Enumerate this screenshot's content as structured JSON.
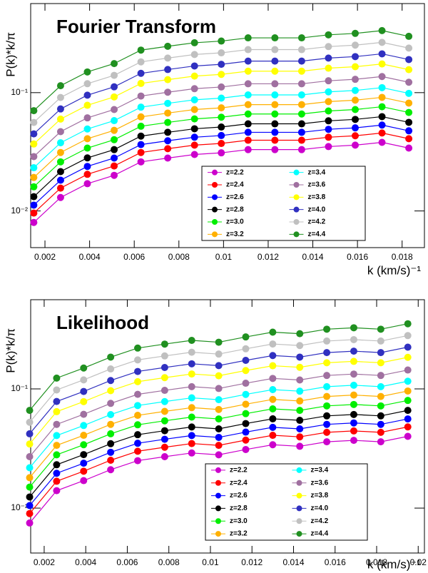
{
  "chart_data": [
    {
      "type": "scatter",
      "title": "Fourier Transform",
      "x_label": "k  (km/s)⁻¹",
      "y_label": "P(k)*k/π",
      "log_y": true,
      "x": [
        0.0015,
        0.0027,
        0.0039,
        0.0051,
        0.0063,
        0.0075,
        0.0087,
        0.0099,
        0.0111,
        0.0123,
        0.0135,
        0.0147,
        0.0159,
        0.0171,
        0.0183
      ],
      "xlim": [
        0.00136,
        0.019
      ],
      "xticks": [
        0.002,
        0.004,
        0.006,
        0.008,
        0.01,
        0.012,
        0.014,
        0.016,
        0.018
      ],
      "ylim": [
        0.0049,
        0.566
      ],
      "yticks": [
        {
          "value": 0.01,
          "label": "10⁻²"
        },
        {
          "value": 0.1,
          "label": "10⁻¹"
        }
      ],
      "series": [
        {
          "name": "z=2.2",
          "color": "#cc00cc",
          "values": [
            0.008,
            0.013,
            0.017,
            0.02,
            0.026,
            0.028,
            0.03,
            0.031,
            0.033,
            0.033,
            0.033,
            0.035,
            0.036,
            0.038,
            0.034
          ]
        },
        {
          "name": "z=2.4",
          "color": "#ff0000",
          "values": [
            0.0096,
            0.0156,
            0.0204,
            0.024,
            0.0312,
            0.0336,
            0.036,
            0.0372,
            0.0396,
            0.0396,
            0.0396,
            0.042,
            0.0432,
            0.0456,
            0.0408
          ]
        },
        {
          "name": "z=2.6",
          "color": "#0000ff",
          "values": [
            0.0112,
            0.0182,
            0.0238,
            0.028,
            0.0364,
            0.0392,
            0.042,
            0.0434,
            0.0462,
            0.0462,
            0.0462,
            0.049,
            0.0504,
            0.0532,
            0.0476
          ]
        },
        {
          "name": "z=2.8",
          "color": "#000000",
          "values": [
            0.0132,
            0.0215,
            0.0281,
            0.033,
            0.0429,
            0.0462,
            0.0495,
            0.0512,
            0.0545,
            0.0545,
            0.0545,
            0.0578,
            0.0594,
            0.0627,
            0.0561
          ]
        },
        {
          "name": "z=3.0",
          "color": "#00ee00",
          "values": [
            0.016,
            0.026,
            0.034,
            0.04,
            0.052,
            0.056,
            0.06,
            0.062,
            0.066,
            0.066,
            0.066,
            0.07,
            0.072,
            0.076,
            0.068
          ]
        },
        {
          "name": "z=3.2",
          "color": "#ffb000",
          "values": [
            0.0192,
            0.0312,
            0.0408,
            0.048,
            0.0624,
            0.0672,
            0.072,
            0.0744,
            0.0792,
            0.0792,
            0.0792,
            0.084,
            0.0864,
            0.0912,
            0.0816
          ]
        },
        {
          "name": "z=3.4",
          "color": "#00ffff",
          "values": [
            0.0232,
            0.0377,
            0.0493,
            0.058,
            0.0754,
            0.0812,
            0.087,
            0.0899,
            0.0957,
            0.0957,
            0.0957,
            0.1015,
            0.1044,
            0.1102,
            0.0986
          ]
        },
        {
          "name": "z=3.6",
          "color": "#a070a0",
          "values": [
            0.0288,
            0.0468,
            0.0612,
            0.072,
            0.0936,
            0.1008,
            0.108,
            0.1116,
            0.1188,
            0.1188,
            0.1188,
            0.126,
            0.1296,
            0.1368,
            0.1224
          ]
        },
        {
          "name": "z=3.8",
          "color": "#ffff00",
          "values": [
            0.0368,
            0.0598,
            0.0782,
            0.092,
            0.1196,
            0.1288,
            0.138,
            0.1426,
            0.1518,
            0.1518,
            0.1518,
            0.161,
            0.1656,
            0.1748,
            0.1564
          ]
        },
        {
          "name": "z=4.0",
          "color": "#3030c0",
          "values": [
            0.0448,
            0.0728,
            0.0952,
            0.112,
            0.1456,
            0.1568,
            0.168,
            0.1736,
            0.1848,
            0.1848,
            0.1848,
            0.196,
            0.2016,
            0.2128,
            0.1904
          ]
        },
        {
          "name": "z=4.2",
          "color": "#c0c0c0",
          "values": [
            0.056,
            0.091,
            0.119,
            0.14,
            0.182,
            0.196,
            0.21,
            0.217,
            0.231,
            0.231,
            0.231,
            0.245,
            0.252,
            0.266,
            0.238
          ]
        },
        {
          "name": "z=4.4",
          "color": "#209020",
          "values": [
            0.0704,
            0.1144,
            0.1496,
            0.176,
            0.2288,
            0.2464,
            0.264,
            0.2728,
            0.2904,
            0.2904,
            0.2904,
            0.308,
            0.3168,
            0.3344,
            0.2992
          ]
        }
      ]
    },
    {
      "type": "scatter",
      "title": "Likelihood",
      "x_label": "k  (km/s)⁻¹",
      "y_label": "P(k)*k/π",
      "log_y": true,
      "x": [
        0.0013,
        0.0026,
        0.0039,
        0.0052,
        0.0065,
        0.0078,
        0.0091,
        0.0104,
        0.0117,
        0.013,
        0.0143,
        0.0156,
        0.0169,
        0.0182,
        0.0195
      ],
      "xlim": [
        0.00135,
        0.0203
      ],
      "xticks": [
        0.002,
        0.004,
        0.006,
        0.008,
        0.01,
        0.012,
        0.014,
        0.016,
        0.018,
        0.02
      ],
      "ylim": [
        0.0042,
        0.56
      ],
      "yticks": [
        {
          "value": 0.01,
          "label": "10⁻²"
        },
        {
          "value": 0.1,
          "label": "10⁻¹"
        }
      ],
      "series": [
        {
          "name": "z=2.2",
          "color": "#cc00cc",
          "values": [
            0.0075,
            0.014,
            0.017,
            0.021,
            0.025,
            0.027,
            0.029,
            0.028,
            0.031,
            0.034,
            0.033,
            0.036,
            0.037,
            0.036,
            0.04
          ]
        },
        {
          "name": "z=2.4",
          "color": "#ff0000",
          "values": [
            0.009,
            0.0168,
            0.0204,
            0.0252,
            0.03,
            0.0324,
            0.0348,
            0.0336,
            0.0372,
            0.0408,
            0.0396,
            0.0432,
            0.0444,
            0.0432,
            0.048
          ]
        },
        {
          "name": "z=2.6",
          "color": "#0000ff",
          "values": [
            0.0105,
            0.0196,
            0.0238,
            0.0294,
            0.035,
            0.0378,
            0.0406,
            0.0392,
            0.0434,
            0.0476,
            0.0462,
            0.0504,
            0.0518,
            0.0504,
            0.056
          ]
        },
        {
          "name": "z=2.8",
          "color": "#000000",
          "values": [
            0.0124,
            0.0231,
            0.0281,
            0.0347,
            0.0413,
            0.0446,
            0.0479,
            0.0462,
            0.0512,
            0.0561,
            0.0545,
            0.0594,
            0.061,
            0.0594,
            0.066
          ]
        },
        {
          "name": "z=3.0",
          "color": "#00ee00",
          "values": [
            0.015,
            0.028,
            0.034,
            0.042,
            0.05,
            0.054,
            0.058,
            0.056,
            0.062,
            0.068,
            0.066,
            0.072,
            0.074,
            0.072,
            0.08
          ]
        },
        {
          "name": "z=3.2",
          "color": "#ffb000",
          "values": [
            0.018,
            0.0336,
            0.0408,
            0.0504,
            0.06,
            0.0648,
            0.0696,
            0.0672,
            0.0744,
            0.0816,
            0.0792,
            0.0864,
            0.0888,
            0.0864,
            0.096
          ]
        },
        {
          "name": "z=3.4",
          "color": "#00ffff",
          "values": [
            0.0218,
            0.0406,
            0.0493,
            0.0609,
            0.0725,
            0.0783,
            0.0841,
            0.0812,
            0.0899,
            0.0986,
            0.0957,
            0.1044,
            0.1073,
            0.1044,
            0.116
          ]
        },
        {
          "name": "z=3.6",
          "color": "#a070a0",
          "values": [
            0.027,
            0.0504,
            0.0612,
            0.0756,
            0.09,
            0.0972,
            0.1044,
            0.1008,
            0.1116,
            0.1224,
            0.1188,
            0.1296,
            0.1332,
            0.1296,
            0.144
          ]
        },
        {
          "name": "z=3.8",
          "color": "#ffff00",
          "values": [
            0.0345,
            0.0644,
            0.0782,
            0.0966,
            0.115,
            0.1242,
            0.1334,
            0.1288,
            0.1426,
            0.1564,
            0.1518,
            0.1656,
            0.1702,
            0.1656,
            0.184
          ]
        },
        {
          "name": "z=4.0",
          "color": "#3030c0",
          "values": [
            0.042,
            0.0784,
            0.0952,
            0.1176,
            0.14,
            0.1512,
            0.1624,
            0.1568,
            0.1736,
            0.1904,
            0.1848,
            0.2016,
            0.2072,
            0.2016,
            0.224
          ]
        },
        {
          "name": "z=4.2",
          "color": "#c0c0c0",
          "values": [
            0.0525,
            0.098,
            0.119,
            0.147,
            0.175,
            0.189,
            0.203,
            0.196,
            0.217,
            0.238,
            0.231,
            0.252,
            0.259,
            0.252,
            0.28
          ]
        },
        {
          "name": "z=4.4",
          "color": "#209020",
          "values": [
            0.066,
            0.1232,
            0.1496,
            0.1848,
            0.22,
            0.2376,
            0.2552,
            0.2464,
            0.2728,
            0.2992,
            0.2904,
            0.3168,
            0.3256,
            0.3168,
            0.352
          ]
        }
      ]
    }
  ]
}
